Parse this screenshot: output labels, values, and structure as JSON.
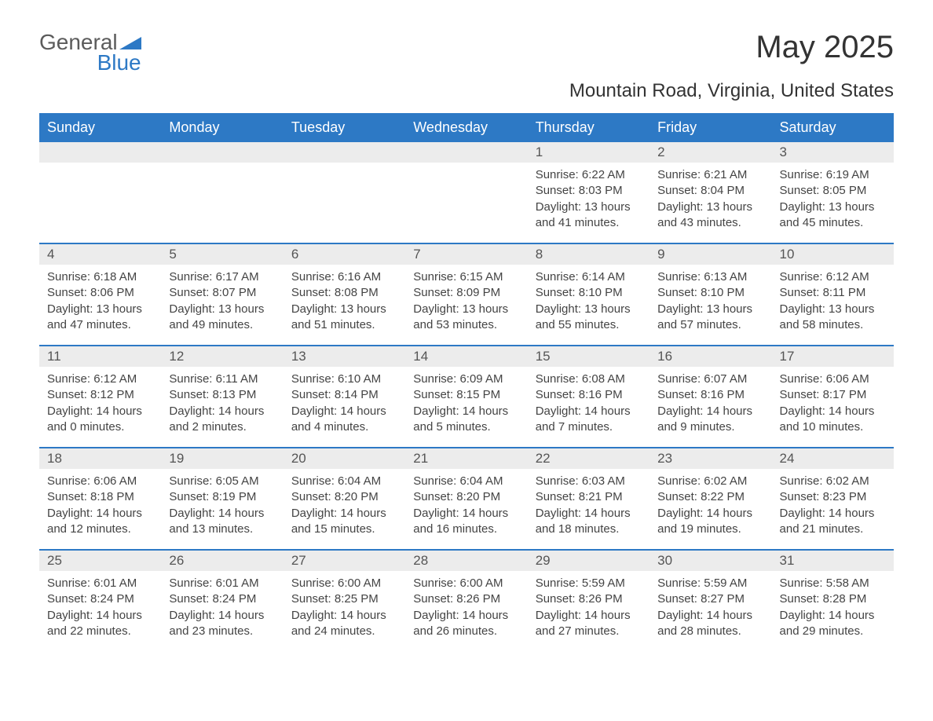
{
  "logo": {
    "text1": "General",
    "text2": "Blue",
    "triangle_color": "#2d79c5"
  },
  "title": "May 2025",
  "subtitle": "Mountain Road, Virginia, United States",
  "colors": {
    "header_bg": "#2d79c5",
    "header_text": "#ffffff",
    "daynum_band_bg": "#ececec",
    "row_border": "#2d79c5",
    "body_text": "#444444",
    "page_bg": "#ffffff"
  },
  "layout": {
    "columns": 7,
    "rows": 5,
    "labels": {
      "sunrise_prefix": "Sunrise: ",
      "sunset_prefix": "Sunset: ",
      "daylight_prefix": "Daylight: ",
      "hours_word": " hours",
      "and_word": "and ",
      "minutes_suffix": " minutes."
    }
  },
  "weekdays": [
    "Sunday",
    "Monday",
    "Tuesday",
    "Wednesday",
    "Thursday",
    "Friday",
    "Saturday"
  ],
  "weeks": [
    [
      {
        "blank": true
      },
      {
        "blank": true
      },
      {
        "blank": true
      },
      {
        "blank": true
      },
      {
        "day": 1,
        "sunrise": "6:22 AM",
        "sunset": "8:03 PM",
        "dl_h": 13,
        "dl_m": 41
      },
      {
        "day": 2,
        "sunrise": "6:21 AM",
        "sunset": "8:04 PM",
        "dl_h": 13,
        "dl_m": 43
      },
      {
        "day": 3,
        "sunrise": "6:19 AM",
        "sunset": "8:05 PM",
        "dl_h": 13,
        "dl_m": 45
      }
    ],
    [
      {
        "day": 4,
        "sunrise": "6:18 AM",
        "sunset": "8:06 PM",
        "dl_h": 13,
        "dl_m": 47
      },
      {
        "day": 5,
        "sunrise": "6:17 AM",
        "sunset": "8:07 PM",
        "dl_h": 13,
        "dl_m": 49
      },
      {
        "day": 6,
        "sunrise": "6:16 AM",
        "sunset": "8:08 PM",
        "dl_h": 13,
        "dl_m": 51
      },
      {
        "day": 7,
        "sunrise": "6:15 AM",
        "sunset": "8:09 PM",
        "dl_h": 13,
        "dl_m": 53
      },
      {
        "day": 8,
        "sunrise": "6:14 AM",
        "sunset": "8:10 PM",
        "dl_h": 13,
        "dl_m": 55
      },
      {
        "day": 9,
        "sunrise": "6:13 AM",
        "sunset": "8:10 PM",
        "dl_h": 13,
        "dl_m": 57
      },
      {
        "day": 10,
        "sunrise": "6:12 AM",
        "sunset": "8:11 PM",
        "dl_h": 13,
        "dl_m": 58
      }
    ],
    [
      {
        "day": 11,
        "sunrise": "6:12 AM",
        "sunset": "8:12 PM",
        "dl_h": 14,
        "dl_m": 0
      },
      {
        "day": 12,
        "sunrise": "6:11 AM",
        "sunset": "8:13 PM",
        "dl_h": 14,
        "dl_m": 2
      },
      {
        "day": 13,
        "sunrise": "6:10 AM",
        "sunset": "8:14 PM",
        "dl_h": 14,
        "dl_m": 4
      },
      {
        "day": 14,
        "sunrise": "6:09 AM",
        "sunset": "8:15 PM",
        "dl_h": 14,
        "dl_m": 5
      },
      {
        "day": 15,
        "sunrise": "6:08 AM",
        "sunset": "8:16 PM",
        "dl_h": 14,
        "dl_m": 7
      },
      {
        "day": 16,
        "sunrise": "6:07 AM",
        "sunset": "8:16 PM",
        "dl_h": 14,
        "dl_m": 9
      },
      {
        "day": 17,
        "sunrise": "6:06 AM",
        "sunset": "8:17 PM",
        "dl_h": 14,
        "dl_m": 10
      }
    ],
    [
      {
        "day": 18,
        "sunrise": "6:06 AM",
        "sunset": "8:18 PM",
        "dl_h": 14,
        "dl_m": 12
      },
      {
        "day": 19,
        "sunrise": "6:05 AM",
        "sunset": "8:19 PM",
        "dl_h": 14,
        "dl_m": 13
      },
      {
        "day": 20,
        "sunrise": "6:04 AM",
        "sunset": "8:20 PM",
        "dl_h": 14,
        "dl_m": 15
      },
      {
        "day": 21,
        "sunrise": "6:04 AM",
        "sunset": "8:20 PM",
        "dl_h": 14,
        "dl_m": 16
      },
      {
        "day": 22,
        "sunrise": "6:03 AM",
        "sunset": "8:21 PM",
        "dl_h": 14,
        "dl_m": 18
      },
      {
        "day": 23,
        "sunrise": "6:02 AM",
        "sunset": "8:22 PM",
        "dl_h": 14,
        "dl_m": 19
      },
      {
        "day": 24,
        "sunrise": "6:02 AM",
        "sunset": "8:23 PM",
        "dl_h": 14,
        "dl_m": 21
      }
    ],
    [
      {
        "day": 25,
        "sunrise": "6:01 AM",
        "sunset": "8:24 PM",
        "dl_h": 14,
        "dl_m": 22
      },
      {
        "day": 26,
        "sunrise": "6:01 AM",
        "sunset": "8:24 PM",
        "dl_h": 14,
        "dl_m": 23
      },
      {
        "day": 27,
        "sunrise": "6:00 AM",
        "sunset": "8:25 PM",
        "dl_h": 14,
        "dl_m": 24
      },
      {
        "day": 28,
        "sunrise": "6:00 AM",
        "sunset": "8:26 PM",
        "dl_h": 14,
        "dl_m": 26
      },
      {
        "day": 29,
        "sunrise": "5:59 AM",
        "sunset": "8:26 PM",
        "dl_h": 14,
        "dl_m": 27
      },
      {
        "day": 30,
        "sunrise": "5:59 AM",
        "sunset": "8:27 PM",
        "dl_h": 14,
        "dl_m": 28
      },
      {
        "day": 31,
        "sunrise": "5:58 AM",
        "sunset": "8:28 PM",
        "dl_h": 14,
        "dl_m": 29
      }
    ]
  ]
}
